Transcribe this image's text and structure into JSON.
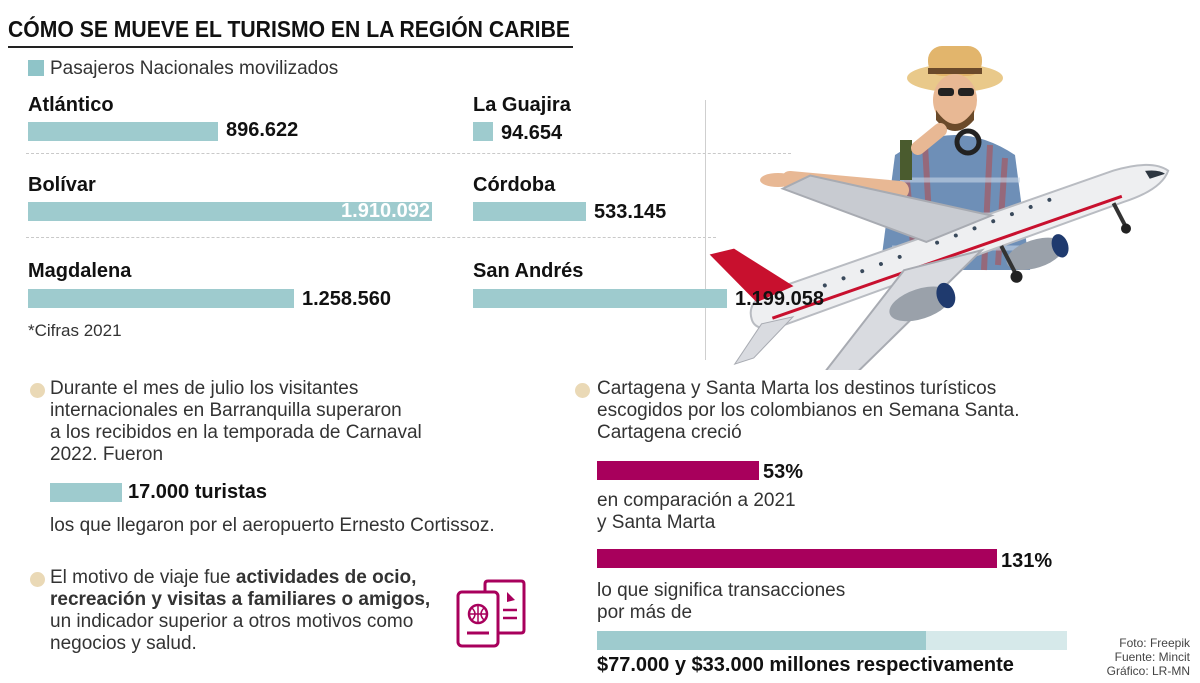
{
  "header": {
    "title": "CÓMO SE MUEVE EL TURISMO EN LA REGIÓN CARIBE",
    "legend": "Pasajeros Nacionales movilizados"
  },
  "chart_data": {
    "type": "bar",
    "title": "CÓMO SE MUEVE EL TURISMO EN LA REGIÓN CARIBE",
    "series": [
      {
        "name": "Pasajeros Nacionales movilizados",
        "categories": [
          "Atlántico",
          "La Guajira",
          "Bolívar",
          "Córdoba",
          "Magdalena",
          "San Andrés"
        ],
        "values": [
          896622,
          94654,
          1910092,
          533145,
          1258560,
          1199058
        ],
        "labels": [
          "896.622",
          "94.654",
          "1.910.092",
          "533.145",
          "1.258.560",
          "1.199.058"
        ]
      }
    ],
    "max_value": 1910092,
    "note": "*Cifras 2021",
    "colors": {
      "bar": "#9ecbce",
      "highlight": "#a8005c",
      "bullet": "#ead9b6"
    }
  },
  "info": {
    "barranquilla": {
      "text_lines": [
        "Durante el mes de julio los visitantes",
        "internacionales en Barranquilla superaron",
        "a los recibidos en la temporada de Carnaval",
        "2022. Fueron"
      ],
      "tourists": "17.000 turistas",
      "after": "los que llegaron por el aeropuerto Ernesto Cortissoz."
    },
    "motivo": {
      "line1_normal": "El motivo de viaje  fue ",
      "line1_bold": "actividades de ocio,",
      "line2_bold": "recreación y visitas a familiares o amigos,",
      "line3": "un indicador superior a otros motivos como",
      "line4": "negocios y salud."
    },
    "destinos": {
      "text_lines": [
        "Cartagena y Santa Marta los destinos turísticos",
        "escogidos por los colombianos en Semana Santa.",
        "Cartagena creció"
      ],
      "growth": [
        {
          "label": "53%",
          "value": 53
        },
        {
          "label": "131%",
          "value": 131
        }
      ],
      "comparison_lines": [
        "en comparación a 2021",
        "y Santa Marta"
      ],
      "transactions_lines": [
        "lo que significa transacciones",
        "por más de"
      ],
      "transactions": [
        77000,
        33000
      ],
      "transactions_label": "$77.000 y $33.000 millones respectivamente"
    }
  },
  "credits": {
    "photo": "Foto: Freepik",
    "source": "Fuente: Mincit",
    "graphic": "Gráfico: LR-MN"
  }
}
